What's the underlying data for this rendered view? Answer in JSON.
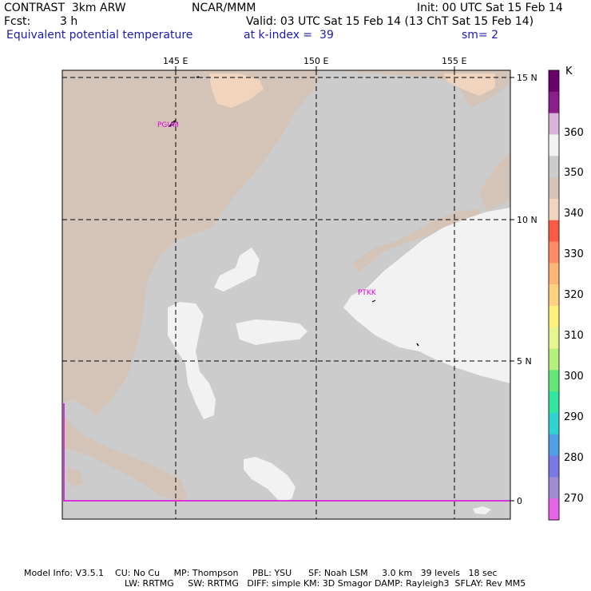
{
  "header": {
    "model": "CONTRAST  3km ARW",
    "org": "NCAR/MMM",
    "init": "Init: 00 UTC Sat 15 Feb 14",
    "fcst_label": "Fcst:",
    "fcst_value": "3 h",
    "valid": "Valid: 03 UTC Sat 15 Feb 14 (13 ChT Sat 15 Feb 14)",
    "field": "Equivalent potential temperature",
    "level": "at k-index =  39",
    "smooth": "sm= 2"
  },
  "map": {
    "lon_labels": [
      "145 E",
      "150 E",
      "155 E"
    ],
    "lat_labels": [
      "15 N",
      "10 N",
      "5 N",
      "0"
    ],
    "sites": [
      "PGUM",
      "PTKK"
    ]
  },
  "colorbar": {
    "unit": "K",
    "labels": [
      "360",
      "350",
      "340",
      "330",
      "320",
      "310",
      "300",
      "290",
      "280",
      "270"
    ],
    "colors": [
      "#6a006a",
      "#8c1e8c",
      "#d8b4d8",
      "#f2f2f2",
      "#cccccc",
      "#d4c4b8",
      "#f0d4be",
      "#ff5a46",
      "#ff8c64",
      "#ffb478",
      "#ffd282",
      "#fff07a",
      "#e6f58c",
      "#b4f07a",
      "#64e678",
      "#32e6a0",
      "#32d2d2",
      "#50a0e6",
      "#7878e6",
      "#a08cd2",
      "#e664e6"
    ]
  },
  "footer": {
    "line1": "Model Info: V3.5.1    CU: No Cu     MP: Thompson     PBL: YSU      SF: Noah LSM     3.0 km   39 levels   18 sec",
    "line2": "LW: RRTMG     SW: RRTMG   DIFF: simple KM: 3D Smagor DAMP: Rayleigh3  SFLAY: Rev MM5"
  }
}
